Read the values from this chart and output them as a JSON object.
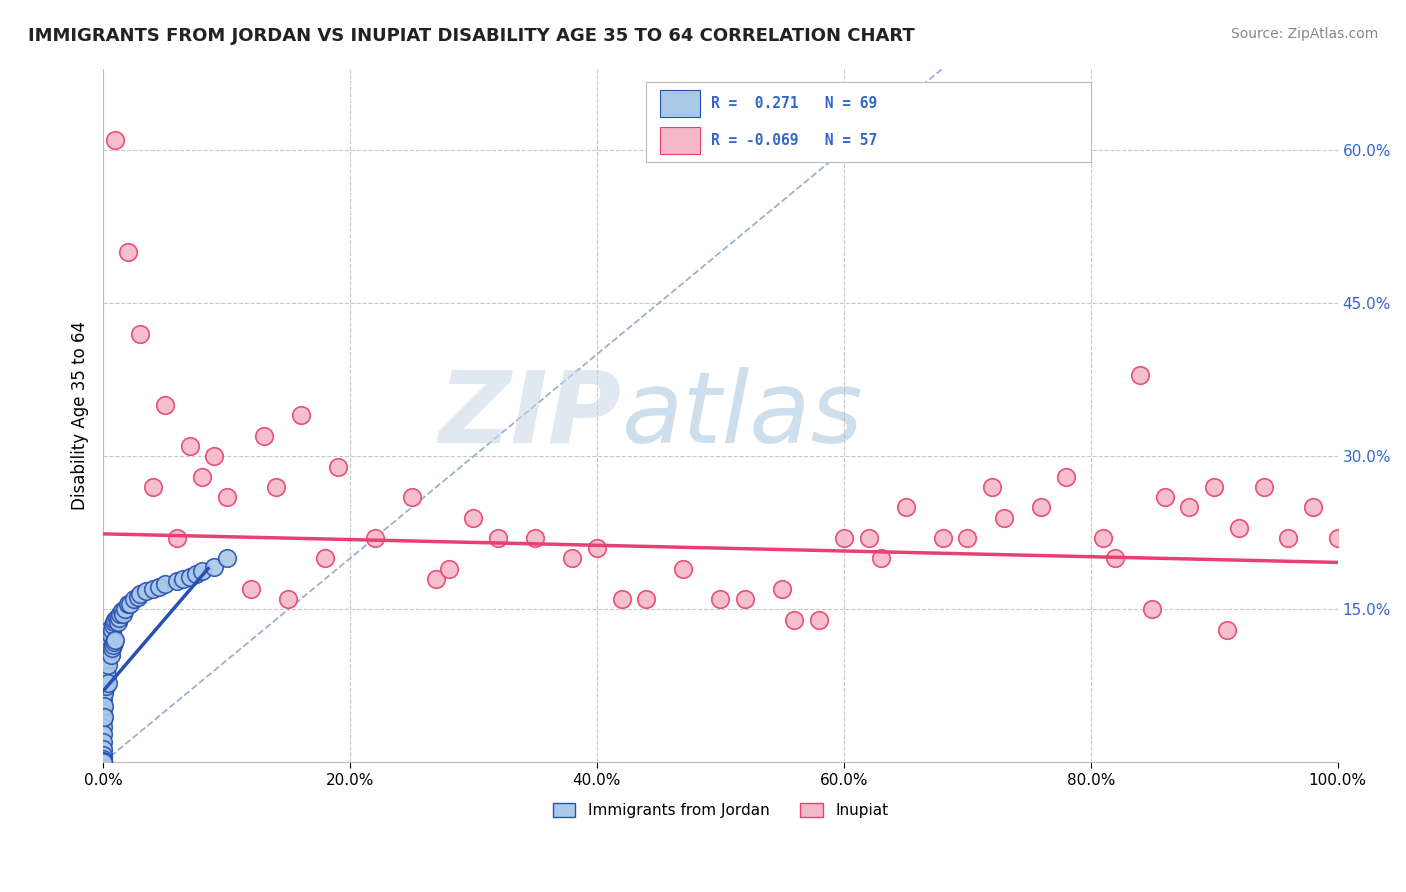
{
  "title": "IMMIGRANTS FROM JORDAN VS INUPIAT DISABILITY AGE 35 TO 64 CORRELATION CHART",
  "source": "Source: ZipAtlas.com",
  "ylabel": "Disability Age 35 to 64",
  "legend_label1": "Immigrants from Jordan",
  "legend_label2": "Inupiat",
  "r1": 0.271,
  "n1": 69,
  "r2": -0.069,
  "n2": 57,
  "xlim": [
    0,
    1.0
  ],
  "ylim": [
    0,
    0.68
  ],
  "xtick_labels": [
    "0.0%",
    "20.0%",
    "40.0%",
    "60.0%",
    "80.0%",
    "100.0%"
  ],
  "xtick_vals": [
    0.0,
    0.2,
    0.4,
    0.6,
    0.8,
    1.0
  ],
  "ytick_labels": [
    "15.0%",
    "30.0%",
    "45.0%",
    "60.0%"
  ],
  "ytick_vals": [
    0.15,
    0.3,
    0.45,
    0.6
  ],
  "background_color": "#ffffff",
  "grid_color": "#c8c8c8",
  "color1": "#aac8e8",
  "color2": "#f5b8c8",
  "line1_color": "#2850b0",
  "line2_color": "#e84070",
  "diagonal_color": "#9ab0d0",
  "watermark_zip": "ZIP",
  "watermark_atlas": "atlas",
  "inupiat_pts_x": [
    0.01,
    0.02,
    0.03,
    0.05,
    0.07,
    0.08,
    0.09,
    0.1,
    0.13,
    0.14,
    0.16,
    0.19,
    0.22,
    0.25,
    0.3,
    0.32,
    0.35,
    0.4,
    0.44,
    0.47,
    0.52,
    0.55,
    0.58,
    0.6,
    0.63,
    0.65,
    0.68,
    0.72,
    0.76,
    0.78,
    0.81,
    0.84,
    0.86,
    0.88,
    0.9,
    0.92,
    0.94,
    0.96,
    0.98,
    1.0,
    0.06,
    0.12,
    0.18,
    0.27,
    0.38,
    0.5,
    0.62,
    0.73,
    0.82,
    0.91,
    0.04,
    0.15,
    0.28,
    0.42,
    0.56,
    0.7,
    0.85
  ],
  "inupiat_pts_y": [
    0.61,
    0.5,
    0.42,
    0.35,
    0.31,
    0.28,
    0.3,
    0.26,
    0.32,
    0.27,
    0.34,
    0.29,
    0.22,
    0.26,
    0.24,
    0.22,
    0.22,
    0.21,
    0.16,
    0.19,
    0.16,
    0.17,
    0.14,
    0.22,
    0.2,
    0.25,
    0.22,
    0.27,
    0.25,
    0.28,
    0.22,
    0.38,
    0.26,
    0.25,
    0.27,
    0.23,
    0.27,
    0.22,
    0.25,
    0.22,
    0.22,
    0.17,
    0.2,
    0.18,
    0.2,
    0.16,
    0.22,
    0.24,
    0.2,
    0.13,
    0.27,
    0.16,
    0.19,
    0.16,
    0.14,
    0.22,
    0.15
  ],
  "jordan_pts_x": [
    0.0,
    0.0,
    0.0,
    0.0,
    0.0,
    0.0,
    0.0,
    0.0,
    0.0,
    0.0,
    0.0,
    0.0,
    0.0,
    0.0,
    0.0,
    0.0,
    0.0,
    0.0,
    0.0,
    0.0,
    0.001,
    0.001,
    0.001,
    0.001,
    0.001,
    0.002,
    0.002,
    0.002,
    0.003,
    0.003,
    0.003,
    0.004,
    0.004,
    0.004,
    0.005,
    0.005,
    0.006,
    0.006,
    0.007,
    0.007,
    0.008,
    0.008,
    0.009,
    0.009,
    0.01,
    0.01,
    0.011,
    0.012,
    0.013,
    0.014,
    0.015,
    0.016,
    0.018,
    0.02,
    0.022,
    0.025,
    0.028,
    0.03,
    0.035,
    0.04,
    0.045,
    0.05,
    0.06,
    0.065,
    0.07,
    0.075,
    0.08,
    0.09,
    0.1
  ],
  "jordan_pts_y": [
    0.115,
    0.1,
    0.09,
    0.082,
    0.075,
    0.068,
    0.062,
    0.055,
    0.048,
    0.042,
    0.035,
    0.028,
    0.02,
    0.013,
    0.007,
    0.003,
    0.001,
    0.0,
    0.0,
    0.0,
    0.095,
    0.08,
    0.068,
    0.055,
    0.045,
    0.11,
    0.09,
    0.075,
    0.12,
    0.1,
    0.085,
    0.115,
    0.095,
    0.078,
    0.13,
    0.11,
    0.125,
    0.105,
    0.13,
    0.112,
    0.135,
    0.115,
    0.138,
    0.118,
    0.14,
    0.12,
    0.142,
    0.138,
    0.142,
    0.145,
    0.148,
    0.145,
    0.15,
    0.155,
    0.155,
    0.16,
    0.162,
    0.165,
    0.168,
    0.17,
    0.172,
    0.175,
    0.178,
    0.18,
    0.182,
    0.185,
    0.188,
    0.192,
    0.2
  ],
  "inupiat_line_x0": 0.0,
  "inupiat_line_y0": 0.224,
  "inupiat_line_x1": 1.0,
  "inupiat_line_y1": 0.196,
  "jordan_line_x0": 0.0,
  "jordan_line_y0": 0.07,
  "jordan_line_x1": 0.085,
  "jordan_line_y1": 0.19
}
